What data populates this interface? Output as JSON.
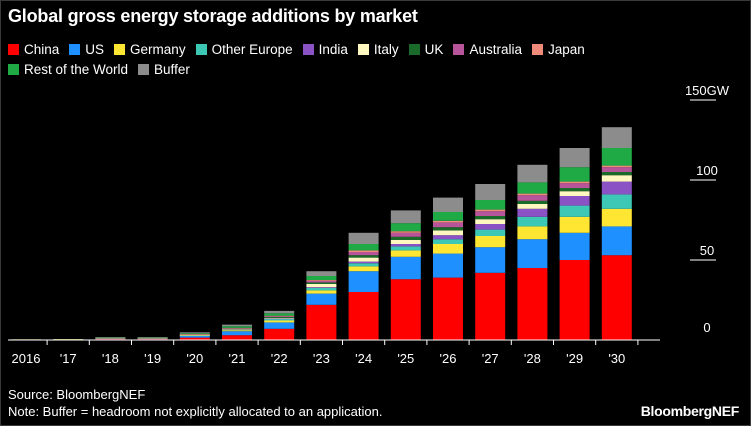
{
  "chart_data": {
    "type": "bar",
    "stacked": true,
    "title": "Global gross energy storage additions by market",
    "unit": "GW",
    "categories": [
      "2016",
      "'17",
      "'18",
      "'19",
      "'20",
      "'21",
      "'22",
      "'23",
      "'24",
      "'25",
      "'26",
      "'27",
      "'28",
      "'29",
      "'30"
    ],
    "yaxis": {
      "ticks": [
        0,
        50,
        100,
        150
      ],
      "tick_labels": [
        "0",
        "50",
        "100",
        "150"
      ],
      "range": [
        0,
        150
      ],
      "position": "right"
    },
    "series": [
      {
        "name": "China",
        "color": "#ff0000",
        "values": [
          0.1,
          0.2,
          0.6,
          0.6,
          1.5,
          3.0,
          7.0,
          22.0,
          30.0,
          38.0,
          39.0,
          42.0,
          45.0,
          50.0,
          53.0
        ]
      },
      {
        "name": "US",
        "color": "#1e90ff",
        "values": [
          0.2,
          0.2,
          0.3,
          0.3,
          1.2,
          2.5,
          4.0,
          7.0,
          13.0,
          14.0,
          15.0,
          16.0,
          18.0,
          17.0,
          18.0
        ]
      },
      {
        "name": "Germany",
        "color": "#ffe633",
        "values": [
          0.1,
          0.1,
          0.1,
          0.1,
          0.2,
          0.6,
          1.2,
          2.0,
          3.0,
          4.0,
          6.0,
          7.0,
          8.0,
          10.0,
          11.0
        ]
      },
      {
        "name": "Other Europe",
        "color": "#3cc8b4",
        "values": [
          0.0,
          0.0,
          0.1,
          0.1,
          0.2,
          0.4,
          1.0,
          1.5,
          2.0,
          2.5,
          3.0,
          4.0,
          6.0,
          7.0,
          9.0
        ]
      },
      {
        "name": "India",
        "color": "#8a52c4",
        "values": [
          0.0,
          0.0,
          0.0,
          0.0,
          0.0,
          0.1,
          0.2,
          0.5,
          1.0,
          1.5,
          2.5,
          3.5,
          5.0,
          6.0,
          8.0
        ]
      },
      {
        "name": "Italy",
        "color": "#fff7c0",
        "values": [
          0.0,
          0.0,
          0.0,
          0.0,
          0.1,
          0.1,
          0.3,
          2.0,
          2.5,
          2.5,
          3.0,
          3.0,
          3.0,
          3.0,
          4.0
        ]
      },
      {
        "name": "UK",
        "color": "#1a6b2a",
        "values": [
          0.0,
          0.0,
          0.1,
          0.1,
          0.2,
          0.4,
          0.7,
          1.0,
          1.5,
          2.0,
          2.0,
          2.0,
          2.0,
          2.0,
          2.0
        ]
      },
      {
        "name": "Australia",
        "color": "#b8549a",
        "values": [
          0.0,
          0.0,
          0.1,
          0.1,
          0.2,
          0.3,
          0.5,
          1.0,
          2.0,
          2.5,
          3.0,
          3.0,
          3.5,
          3.0,
          3.0
        ]
      },
      {
        "name": "Japan",
        "color": "#f08a7a",
        "values": [
          0.0,
          0.0,
          0.1,
          0.1,
          0.1,
          0.2,
          0.3,
          0.5,
          1.0,
          1.0,
          1.0,
          1.0,
          1.0,
          1.0,
          1.0
        ]
      },
      {
        "name": "Rest of the World",
        "color": "#1faa46",
        "values": [
          0.0,
          0.0,
          0.2,
          0.2,
          0.5,
          1.0,
          1.5,
          2.5,
          4.0,
          5.0,
          5.5,
          6.0,
          7.0,
          9.0,
          11.0
        ]
      },
      {
        "name": "Buffer",
        "color": "#8c8c8c",
        "values": [
          0.0,
          0.0,
          0.2,
          0.2,
          0.6,
          1.0,
          1.5,
          3.0,
          7.0,
          8.0,
          9.0,
          10.0,
          11.0,
          12.0,
          13.0
        ]
      }
    ]
  },
  "footer": {
    "source": "Source: BloombergNEF",
    "note": "Note: Buffer = headroom not explicitly allocated to an application.",
    "brand": "BloombergNEF"
  },
  "colors": {
    "background": "#000000",
    "text": "#ffffff",
    "axis": "#ffffff"
  }
}
